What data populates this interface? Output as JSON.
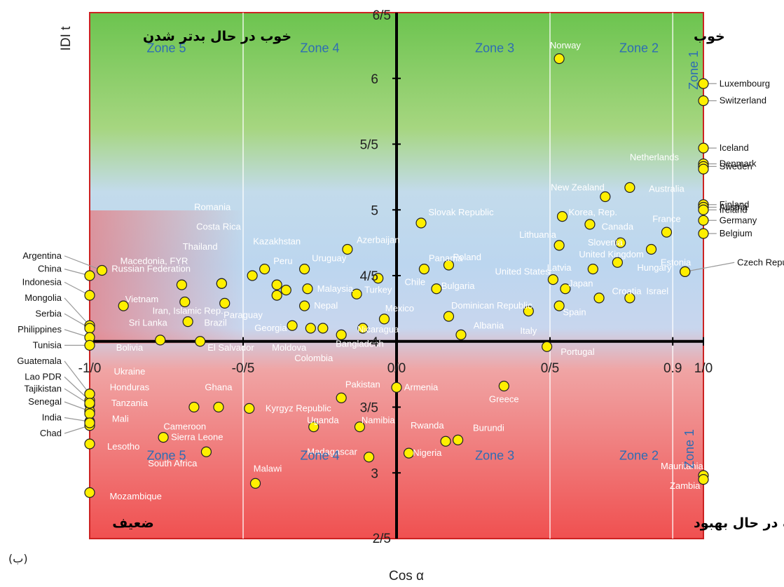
{
  "chart_data": {
    "type": "scatter",
    "xlabel": "Cos α",
    "ylabel": "IDI t",
    "panel_label": "(ب)",
    "xlim": [
      -1.0,
      1.0
    ],
    "ylim": [
      2.5,
      6.5
    ],
    "x_ticks": [
      {
        "v": -1.0,
        "label": "-1/0"
      },
      {
        "v": -0.5,
        "label": "-0/5"
      },
      {
        "v": 0.0,
        "label": "0/0"
      },
      {
        "v": 0.5,
        "label": "0/5"
      },
      {
        "v": 0.9,
        "label": "0.9"
      },
      {
        "v": 1.0,
        "label": "1/0"
      }
    ],
    "y_ticks": [
      {
        "v": 3.0,
        "label": "3"
      },
      {
        "v": 3.5,
        "label": "3/5"
      },
      {
        "v": 4.0,
        "label": "4"
      },
      {
        "v": 4.5,
        "label": "4/5"
      },
      {
        "v": 5.0,
        "label": "5"
      },
      {
        "v": 5.5,
        "label": "5/5"
      },
      {
        "v": 6.0,
        "label": "6"
      }
    ],
    "y_top_label": {
      "v": 6.5,
      "label": "6/5"
    },
    "y_bottom_label": {
      "v": 2.5,
      "label": "2/5"
    },
    "zone_lines_x": [
      -0.5,
      0.5,
      0.9
    ],
    "zones": [
      {
        "label": "Zone 5",
        "x": -0.75,
        "y": 6.2
      },
      {
        "label": "Zone 4",
        "x": -0.25,
        "y": 6.2
      },
      {
        "label": "Zone 3",
        "x": 0.32,
        "y": 6.2
      },
      {
        "label": "Zone 2",
        "x": 0.79,
        "y": 6.2
      },
      {
        "label": "Zone 5",
        "x": -0.75,
        "y": 3.1
      },
      {
        "label": "Zone 4",
        "x": -0.25,
        "y": 3.1
      },
      {
        "label": "Zone 3",
        "x": 0.32,
        "y": 3.1
      },
      {
        "label": "Zone 2",
        "x": 0.79,
        "y": 3.1
      }
    ],
    "zone1_label": "Zone 1",
    "quadrants": {
      "top_left": "خوب در حال بدتر شدن",
      "top_right": "خوب",
      "bottom_left": "ضعیف",
      "bottom_right": "ضعیف در حال بهبود"
    },
    "points": [
      {
        "name": "Norway",
        "x": 0.53,
        "y": 6.15,
        "lx": 0.55,
        "ly": 6.25
      },
      {
        "name": "Luxembourg",
        "x": 1.0,
        "y": 5.96
      },
      {
        "name": "Switzerland",
        "x": 1.0,
        "y": 5.83
      },
      {
        "name": "Iceland",
        "x": 1.0,
        "y": 5.47
      },
      {
        "name": "Denmark",
        "x": 1.0,
        "y": 5.35
      },
      {
        "name": "Sweden",
        "x": 1.0,
        "y": 5.33
      },
      {
        "name": "Netherlands",
        "x": 1.0,
        "y": 5.31,
        "lx": 0.84,
        "ly": 5.4
      },
      {
        "name": "Finland",
        "x": 1.0,
        "y": 5.04
      },
      {
        "name": "Austria",
        "x": 1.0,
        "y": 5.02
      },
      {
        "name": "Ireland",
        "x": 1.0,
        "y": 5.0
      },
      {
        "name": "Germany",
        "x": 1.0,
        "y": 4.92
      },
      {
        "name": "Belgium",
        "x": 1.0,
        "y": 4.82
      },
      {
        "name": "Czech Republic",
        "x": 0.94,
        "y": 4.53,
        "lx": 1.11,
        "ly": 4.6
      },
      {
        "name": "Estonia",
        "x": 0.94,
        "y": 4.53,
        "lx": 0.91,
        "ly": 4.6
      },
      {
        "name": "Australia",
        "x": 0.76,
        "y": 5.17,
        "lx": 0.88,
        "ly": 5.16
      },
      {
        "name": "New Zealand",
        "x": 0.68,
        "y": 5.1,
        "lx": 0.59,
        "ly": 5.17
      },
      {
        "name": "Korea, Rep.",
        "x": 0.54,
        "y": 4.95,
        "lx": 0.64,
        "ly": 4.98
      },
      {
        "name": "Canada",
        "x": 0.63,
        "y": 4.89,
        "lx": 0.72,
        "ly": 4.87
      },
      {
        "name": "France",
        "x": 0.88,
        "y": 4.83,
        "lx": 0.88,
        "ly": 4.93
      },
      {
        "name": "Slovenia",
        "x": 0.73,
        "y": 4.75,
        "lx": 0.68,
        "ly": 4.75
      },
      {
        "name": "Lithuania",
        "x": 0.53,
        "y": 4.73,
        "lx": 0.46,
        "ly": 4.81
      },
      {
        "name": "United Kingdom",
        "x": 0.83,
        "y": 4.7,
        "lx": 0.7,
        "ly": 4.66
      },
      {
        "name": "Latvia",
        "x": 0.64,
        "y": 4.55,
        "lx": 0.53,
        "ly": 4.56
      },
      {
        "name": "Hungary",
        "x": 0.72,
        "y": 4.6,
        "lx": 0.84,
        "ly": 4.56
      },
      {
        "name": "United States",
        "x": 0.51,
        "y": 4.47,
        "lx": 0.41,
        "ly": 4.53
      },
      {
        "name": "Japan",
        "x": 0.55,
        "y": 4.4,
        "lx": 0.6,
        "ly": 4.44
      },
      {
        "name": "Croatia",
        "x": 0.66,
        "y": 4.33,
        "lx": 0.75,
        "ly": 4.38
      },
      {
        "name": "Israel",
        "x": 0.76,
        "y": 4.33,
        "lx": 0.85,
        "ly": 4.38
      },
      {
        "name": "Spain",
        "x": 0.53,
        "y": 4.27,
        "lx": 0.58,
        "ly": 4.22
      },
      {
        "name": "Italy",
        "x": 0.43,
        "y": 4.23,
        "lx": 0.43,
        "ly": 4.08
      },
      {
        "name": "Portugal",
        "x": 0.49,
        "y": 3.96,
        "lx": 0.59,
        "ly": 3.92
      },
      {
        "name": "Slovak Republic",
        "x": 0.08,
        "y": 4.9,
        "lx": 0.21,
        "ly": 4.98
      },
      {
        "name": "Azerbaijan",
        "x": -0.16,
        "y": 4.7,
        "lx": -0.06,
        "ly": 4.77
      },
      {
        "name": "Panama",
        "x": 0.09,
        "y": 4.55,
        "lx": 0.16,
        "ly": 4.63
      },
      {
        "name": "Poland",
        "x": 0.17,
        "y": 4.58,
        "lx": 0.23,
        "ly": 4.64
      },
      {
        "name": "Chile",
        "x": -0.06,
        "y": 4.48,
        "lx": 0.06,
        "ly": 4.45
      },
      {
        "name": "Bulgaria",
        "x": 0.13,
        "y": 4.4,
        "lx": 0.2,
        "ly": 4.42
      },
      {
        "name": "Turkey",
        "x": -0.13,
        "y": 4.36,
        "lx": -0.06,
        "ly": 4.39
      },
      {
        "name": "Mexico",
        "x": -0.04,
        "y": 4.17,
        "lx": 0.01,
        "ly": 4.25
      },
      {
        "name": "Dominican Republic",
        "x": 0.17,
        "y": 4.19,
        "lx": 0.31,
        "ly": 4.27
      },
      {
        "name": "Albania",
        "x": 0.21,
        "y": 4.05,
        "lx": 0.3,
        "ly": 4.12
      },
      {
        "name": "Nicaragua",
        "x": -0.11,
        "y": 4.1,
        "lx": -0.06,
        "ly": 4.09
      },
      {
        "name": "Bangladesh",
        "x": -0.18,
        "y": 4.05,
        "lx": -0.12,
        "ly": 3.98
      },
      {
        "name": "Moldova",
        "x": -0.28,
        "y": 4.1,
        "lx": -0.35,
        "ly": 3.95
      },
      {
        "name": "Colombia",
        "x": -0.24,
        "y": 4.1,
        "lx": -0.27,
        "ly": 3.87
      },
      {
        "name": "Georgia",
        "x": -0.34,
        "y": 4.12,
        "lx": -0.41,
        "ly": 4.1
      },
      {
        "name": "Nepal",
        "x": -0.3,
        "y": 4.27,
        "lx": -0.23,
        "ly": 4.27
      },
      {
        "name": "Malaysia",
        "x": -0.29,
        "y": 4.4,
        "lx": -0.2,
        "ly": 4.4
      },
      {
        "name": "Uruguay",
        "x": -0.3,
        "y": 4.55,
        "lx": -0.22,
        "ly": 4.63
      },
      {
        "name": "Kazakhstan",
        "x": -0.39,
        "y": 4.43,
        "lx": -0.39,
        "ly": 4.76
      },
      {
        "name": "Peru",
        "x": -0.36,
        "y": 4.39,
        "lx": -0.37,
        "ly": 4.61
      },
      {
        "name": "Paraguay",
        "x": -0.39,
        "y": 4.35,
        "lx": -0.5,
        "ly": 4.2
      },
      {
        "name": "Romania",
        "x": -0.43,
        "y": 4.55,
        "lx": -0.6,
        "ly": 5.02
      },
      {
        "name": "Costa Rica",
        "x": -0.47,
        "y": 4.5,
        "lx": -0.58,
        "ly": 4.87
      },
      {
        "name": "Thailand",
        "x": -0.57,
        "y": 4.44,
        "lx": -0.64,
        "ly": 4.72
      },
      {
        "name": "Macedonia, FYR",
        "x": -0.57,
        "y": 4.44,
        "lx": -0.79,
        "ly": 4.61
      },
      {
        "name": "Russian Federation",
        "x": -0.7,
        "y": 4.43,
        "lx": -0.8,
        "ly": 4.55
      },
      {
        "name": "Vietnam",
        "x": -0.89,
        "y": 4.27,
        "lx": -0.83,
        "ly": 4.32
      },
      {
        "name": "Iran, Islamic Rep.",
        "x": -0.69,
        "y": 4.3,
        "lx": -0.68,
        "ly": 4.23
      },
      {
        "name": "Brazil",
        "x": -0.56,
        "y": 4.29,
        "lx": -0.59,
        "ly": 4.14
      },
      {
        "name": "Sri Lanka",
        "x": -0.68,
        "y": 4.15,
        "lx": -0.81,
        "ly": 4.14
      },
      {
        "name": "El Salvador",
        "x": -0.64,
        "y": 4.0,
        "lx": -0.54,
        "ly": 3.95
      },
      {
        "name": "Bolivia",
        "x": -0.77,
        "y": 4.01,
        "lx": -0.87,
        "ly": 3.95
      },
      {
        "name": "Argentina",
        "x": -0.96,
        "y": 4.54,
        "lx": -1.16,
        "ly": 4.65
      },
      {
        "name": "China",
        "x": -1.0,
        "y": 4.5,
        "lx": -1.18,
        "ly": 4.55
      },
      {
        "name": "Indonesia",
        "x": -1.0,
        "y": 4.35,
        "lx": -1.16,
        "ly": 4.45
      },
      {
        "name": "Mongolia",
        "x": -1.0,
        "y": 4.12,
        "lx": -1.18,
        "ly": 4.33
      },
      {
        "name": "Serbia",
        "x": -1.0,
        "y": 4.1,
        "lx": -1.19,
        "ly": 4.21
      },
      {
        "name": "Philippines",
        "x": -1.0,
        "y": 4.03,
        "lx": -1.16,
        "ly": 4.09
      },
      {
        "name": "Tunisia",
        "x": -1.0,
        "y": 3.97,
        "lx": -1.19,
        "ly": 3.97
      },
      {
        "name": "Guatemala",
        "x": -1.0,
        "y": 3.6,
        "lx": -1.17,
        "ly": 3.85
      },
      {
        "name": "Lao PDR",
        "x": -1.0,
        "y": 3.55,
        "lx": -1.18,
        "ly": 3.73
      },
      {
        "name": "Tajikistan",
        "x": -1.0,
        "y": 3.52,
        "lx": -1.17,
        "ly": 3.64
      },
      {
        "name": "Senegal",
        "x": -1.0,
        "y": 3.47,
        "lx": -1.18,
        "ly": 3.54
      },
      {
        "name": "India",
        "x": -1.0,
        "y": 3.39,
        "lx": -1.2,
        "ly": 3.42
      },
      {
        "name": "Chad",
        "x": -1.0,
        "y": 3.36,
        "lx": -1.2,
        "ly": 3.3
      },
      {
        "name": "Ukraine",
        "x": -1.0,
        "y": 3.6,
        "lx": -0.87,
        "ly": 3.77
      },
      {
        "name": "Honduras",
        "x": -1.0,
        "y": 3.53,
        "lx": -0.87,
        "ly": 3.65
      },
      {
        "name": "Tanzania",
        "x": -1.0,
        "y": 3.45,
        "lx": -0.87,
        "ly": 3.53
      },
      {
        "name": "Mali",
        "x": -1.0,
        "y": 3.38,
        "lx": -0.9,
        "ly": 3.41
      },
      {
        "name": "Lesotho",
        "x": -1.0,
        "y": 3.22,
        "lx": -0.89,
        "ly": 3.2
      },
      {
        "name": "Mozambique",
        "x": -1.0,
        "y": 2.85,
        "lx": -0.85,
        "ly": 2.82
      },
      {
        "name": "Ghana",
        "x": -0.58,
        "y": 3.5,
        "lx": -0.58,
        "ly": 3.65
      },
      {
        "name": "Cameroon",
        "x": -0.66,
        "y": 3.5,
        "lx": -0.69,
        "ly": 3.35
      },
      {
        "name": "Kyrgyz Republic",
        "x": -0.48,
        "y": 3.49,
        "lx": -0.32,
        "ly": 3.49
      },
      {
        "name": "Sierra Leone",
        "x": -0.76,
        "y": 3.27,
        "lx": -0.65,
        "ly": 3.27
      },
      {
        "name": "South Africa",
        "x": -0.62,
        "y": 3.16,
        "lx": -0.73,
        "ly": 3.07
      },
      {
        "name": "Malawi",
        "x": -0.46,
        "y": 2.92,
        "lx": -0.42,
        "ly": 3.03
      },
      {
        "name": "Pakistan",
        "x": -0.18,
        "y": 3.57,
        "lx": -0.11,
        "ly": 3.67
      },
      {
        "name": "Uganda",
        "x": -0.27,
        "y": 3.35,
        "lx": -0.24,
        "ly": 3.4
      },
      {
        "name": "Namibia",
        "x": -0.12,
        "y": 3.35,
        "lx": -0.06,
        "ly": 3.4
      },
      {
        "name": "Madagascar",
        "x": -0.09,
        "y": 3.12,
        "lx": -0.21,
        "ly": 3.16
      },
      {
        "name": "Armenia",
        "x": 0.0,
        "y": 3.65,
        "lx": 0.08,
        "ly": 3.65
      },
      {
        "name": "Greece",
        "x": 0.35,
        "y": 3.66,
        "lx": 0.35,
        "ly": 3.56
      },
      {
        "name": "Rwanda",
        "x": 0.16,
        "y": 3.24,
        "lx": 0.1,
        "ly": 3.36
      },
      {
        "name": "Burundi",
        "x": 0.2,
        "y": 3.25,
        "lx": 0.3,
        "ly": 3.34
      },
      {
        "name": "Nigeria",
        "x": 0.04,
        "y": 3.15,
        "lx": 0.1,
        "ly": 3.15
      },
      {
        "name": "Mauritania",
        "x": 1.0,
        "y": 2.98,
        "lx": 0.93,
        "ly": 3.05
      },
      {
        "name": "Zambia",
        "x": 1.0,
        "y": 2.95,
        "lx": 0.94,
        "ly": 2.9
      }
    ]
  }
}
